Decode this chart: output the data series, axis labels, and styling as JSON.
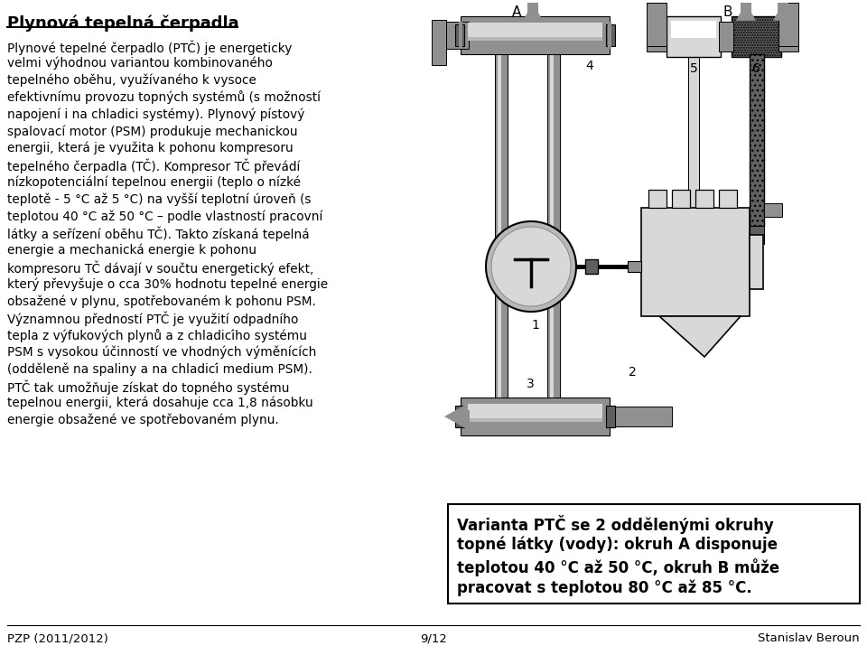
{
  "title": "Plynová tepelná čerpadla",
  "bg_color": "#ffffff",
  "left_text_bold_lines": [
    [
      "Plynové tepelné čerpadlo (PTČ) je energeticky",
      false
    ],
    [
      "velmi výhodnou variantou kombinovaného",
      false
    ],
    [
      "tepelného oběhu, využívaného k vysoce",
      false
    ],
    [
      "efektivnímu provozu topných systémů (s možností",
      false
    ],
    [
      "napojení i na chladici systémy). Plynový pístový",
      false
    ],
    [
      "spalovací motor (PSM) produkuje mechanickou",
      false
    ],
    [
      "energii, která je využita k pohonu kompresoru",
      false
    ],
    [
      "tepelného čerpadla (TČ). Kompresor TČ převádí",
      false
    ],
    [
      "nízkopotenciální tepelnou energii (teplo o nízké",
      false
    ],
    [
      "teplotě - 5 °C až 5 °C) na vyšší teplotní úroveň (s",
      false
    ],
    [
      "teplotou 40 °C až 50 °C – podle vlastností pracovní",
      false
    ],
    [
      "látky a seřízení oběhu TČ). Takto získaná tepelná",
      false
    ],
    [
      "energie a mechanická energie k pohonu",
      false
    ],
    [
      "kompresoru TČ dávají v součtu energetický efekt,",
      false
    ],
    [
      "který převyšuje o cca 30% hodnotu tepelné energie",
      false
    ],
    [
      "obsažené v plynu, spotřebovaném k pohonu PSM.",
      true
    ],
    [
      "Významnou předností PTČ je využití odpadního",
      false
    ],
    [
      "tepla z výfukových plynů a z chladicího systému",
      false
    ],
    [
      "PSM s vysokou účinností ve vhodných výměnících",
      false
    ],
    [
      "(odděleně na spaliny a na chladicí medium PSM).",
      true
    ],
    [
      "PTČ tak umožňuje získat do topného systému",
      false
    ],
    [
      "tepelnou energii, která dosahuje cca 1,8 násobku",
      false
    ],
    [
      "energie obsažené ve spotřebovaném plynu.",
      false
    ]
  ],
  "caption_line1": "Varianta PTČ se 2 oddělenými okruhy",
  "caption_line2": "topné látky (vody): okruh A disponuje",
  "caption_line3": "teplotou 40 °C až 50 °C, okruh B může",
  "caption_line4": "pracovat s teplotou 80 °C až 85 °C.",
  "footer_left": "PZP (2011/2012)",
  "footer_center": "9/12",
  "footer_right": "Stanislav Beroun",
  "c_dark": "#606060",
  "c_mid": "#909090",
  "c_light": "#b8b8b8",
  "c_vlight": "#d8d8d8",
  "c_white": "#f0f0f0"
}
